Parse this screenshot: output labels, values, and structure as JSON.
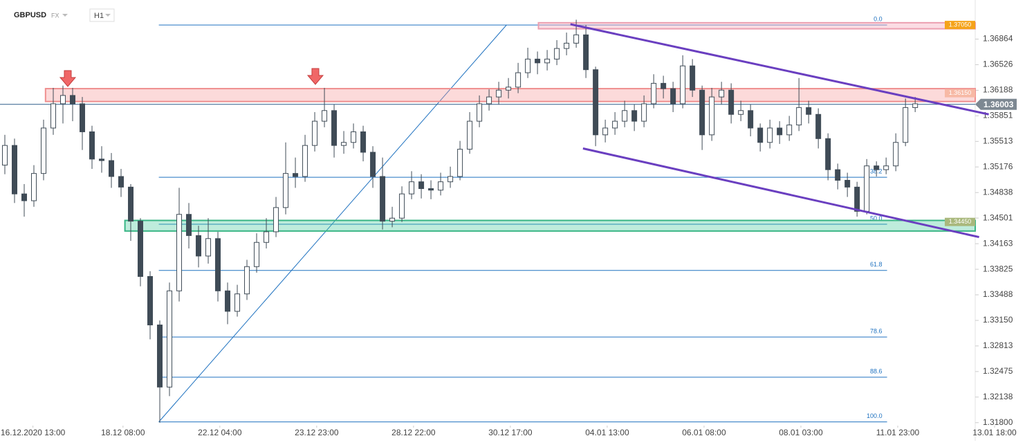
{
  "header": {
    "symbol": "GBPUSD",
    "market": "FX",
    "timeframe": "H1"
  },
  "chart_data": {
    "type": "candlestick",
    "xlim": [
      -0.5,
      100.2
    ],
    "ylim": [
      1.3156,
      1.3738
    ],
    "yticks": [
      1.36864,
      1.36526,
      1.36188,
      1.35851,
      1.35513,
      1.35176,
      1.34838,
      1.34501,
      1.34163,
      1.33825,
      1.33488,
      {
        "value": 1.3315,
        "label": "1.33150"
      },
      1.32813,
      1.32475,
      1.32138,
      {
        "value": 1.318,
        "label": "1.31800"
      }
    ],
    "xticks": [
      {
        "value": 2.9,
        "label": "16.12.2020 13:00"
      },
      {
        "value": 12.2,
        "label": "18.12 08:00"
      },
      {
        "value": 22.2,
        "label": "22.12 04:00"
      },
      {
        "value": 32.2,
        "label": "23.12 23:00"
      },
      {
        "value": 42.2,
        "label": "28.12 22:00"
      },
      {
        "value": 52.2,
        "label": "30.12 17:00"
      },
      {
        "value": 62.2,
        "label": "04.01 13:00"
      },
      {
        "value": 72.2,
        "label": "06.01 08:00"
      },
      {
        "value": 82.2,
        "label": "08.01 03:00"
      },
      {
        "value": 92.2,
        "label": "11.01 23:00"
      },
      {
        "value": 102.2,
        "label": "13.01 18:00"
      }
    ],
    "open": [
      1.352,
      1.3546,
      1.3482,
      1.3473,
      1.3509,
      1.3569,
      1.3601,
      1.3612,
      1.3601,
      1.3564,
      1.3528,
      1.3526,
      1.3505,
      1.3491,
      1.3446,
      1.3373,
      1.3309,
      1.3227,
      1.3354,
      1.3455,
      1.3427,
      1.34,
      1.3423,
      1.3354,
      1.3327,
      1.335,
      1.3386,
      1.3418,
      1.3432,
      1.3464,
      1.3509,
      1.3505,
      1.3546,
      1.3578,
      1.3592,
      1.3546,
      1.355,
      1.3564,
      1.3537,
      1.3505,
      1.3446,
      1.345,
      1.3482,
      1.3498,
      1.3489,
      1.3487,
      1.3498,
      1.3505,
      1.3541,
      1.3578,
      1.3601,
      1.361,
      1.3619,
      1.3623,
      1.3642,
      1.366,
      1.3655,
      1.366,
      1.3674,
      1.3681,
      1.3692,
      1.3646,
      1.356,
      1.3569,
      1.3578,
      1.3592,
      1.3578,
      1.3601,
      1.3628,
      1.3621,
      1.3601,
      1.3651,
      1.3619,
      1.356,
      1.361,
      1.3619,
      1.3587,
      1.3592,
      1.3569,
      1.355,
      1.3569,
      1.356,
      1.3573,
      1.3596,
      1.3587,
      1.3555,
      1.3514,
      1.35,
      1.3491,
      1.3459,
      1.3519,
      1.3514,
      1.3519,
      1.355,
      1.3596
    ],
    "high": [
      1.356,
      1.3555,
      1.3495,
      1.352,
      1.358,
      1.3622,
      1.3625,
      1.3622,
      1.361,
      1.3572,
      1.3545,
      1.3536,
      1.3515,
      1.3495,
      1.345,
      1.338,
      1.3315,
      1.3365,
      1.349,
      1.347,
      1.344,
      1.345,
      1.3432,
      1.3365,
      1.3362,
      1.3395,
      1.343,
      1.345,
      1.3478,
      1.355,
      1.353,
      1.356,
      1.359,
      1.3622,
      1.36,
      1.3565,
      1.3575,
      1.3572,
      1.3545,
      1.353,
      1.3465,
      1.3492,
      1.3512,
      1.3508,
      1.35,
      1.351,
      1.3518,
      1.3552,
      1.359,
      1.3612,
      1.362,
      1.363,
      1.3635,
      1.3655,
      1.3675,
      1.367,
      1.3672,
      1.3685,
      1.3695,
      1.3712,
      1.3705,
      1.365,
      1.358,
      1.359,
      1.3605,
      1.36,
      1.3612,
      1.364,
      1.3638,
      1.363,
      1.3665,
      1.366,
      1.3625,
      1.3622,
      1.363,
      1.3628,
      1.3605,
      1.36,
      1.3575,
      1.358,
      1.3578,
      1.3585,
      1.3635,
      1.3605,
      1.3595,
      1.3562,
      1.3522,
      1.351,
      1.3498,
      1.3528,
      1.3525,
      1.353,
      1.3562,
      1.3608,
      1.361
    ],
    "low": [
      1.3508,
      1.347,
      1.3452,
      1.3465,
      1.35,
      1.356,
      1.3575,
      1.3578,
      1.354,
      1.3515,
      1.351,
      1.349,
      1.3478,
      1.342,
      1.336,
      1.329,
      1.318,
      1.3215,
      1.334,
      1.341,
      1.3385,
      1.339,
      1.334,
      1.331,
      1.332,
      1.3342,
      1.3378,
      1.341,
      1.3425,
      1.3455,
      1.349,
      1.3498,
      1.3538,
      1.357,
      1.353,
      1.3535,
      1.3542,
      1.3525,
      1.349,
      1.3435,
      1.3438,
      1.3445,
      1.3475,
      1.3476,
      1.3475,
      1.348,
      1.349,
      1.35,
      1.3535,
      1.357,
      1.3592,
      1.36,
      1.3608,
      1.3615,
      1.3635,
      1.364,
      1.3645,
      1.3652,
      1.3665,
      1.3675,
      1.3635,
      1.3545,
      1.355,
      1.356,
      1.357,
      1.3565,
      1.357,
      1.3595,
      1.3608,
      1.359,
      1.3595,
      1.361,
      1.354,
      1.3552,
      1.36,
      1.3575,
      1.3578,
      1.3558,
      1.3538,
      1.3542,
      1.3548,
      1.3552,
      1.3565,
      1.3575,
      1.3542,
      1.35,
      1.3488,
      1.3478,
      1.3452,
      1.3455,
      1.3505,
      1.3508,
      1.3512,
      1.3545,
      1.359
    ],
    "close": [
      1.3546,
      1.3482,
      1.3473,
      1.3509,
      1.3569,
      1.3601,
      1.3612,
      1.3601,
      1.3564,
      1.3528,
      1.3526,
      1.3505,
      1.3491,
      1.3446,
      1.3373,
      1.3309,
      1.3227,
      1.3354,
      1.3455,
      1.3427,
      1.34,
      1.3423,
      1.3354,
      1.3327,
      1.335,
      1.3386,
      1.3418,
      1.3432,
      1.3464,
      1.3509,
      1.3505,
      1.3546,
      1.3578,
      1.3592,
      1.3546,
      1.355,
      1.3564,
      1.3537,
      1.3505,
      1.3446,
      1.345,
      1.3482,
      1.3498,
      1.3489,
      1.3487,
      1.3498,
      1.3505,
      1.3541,
      1.3578,
      1.3601,
      1.361,
      1.3619,
      1.3623,
      1.3642,
      1.366,
      1.3655,
      1.366,
      1.3674,
      1.3681,
      1.3692,
      1.3646,
      1.356,
      1.3569,
      1.3578,
      1.3592,
      1.3578,
      1.3601,
      1.3628,
      1.3621,
      1.3601,
      1.3651,
      1.3619,
      1.356,
      1.361,
      1.3619,
      1.3587,
      1.3592,
      1.3569,
      1.355,
      1.3569,
      1.356,
      1.3573,
      1.3596,
      1.3587,
      1.3555,
      1.3514,
      1.35,
      1.3491,
      1.3459,
      1.3519,
      1.3514,
      1.3519,
      1.355,
      1.3596,
      1.3601
    ],
    "up_color": "#ffffff",
    "down_color": "#3f4b56",
    "line_color": "#3f4b56",
    "current_price": {
      "value": 1.36003,
      "color": "#7d8892"
    },
    "zones": [
      {
        "value": 1.3705,
        "label": "1.37050",
        "low": 1.37,
        "high": 1.3708,
        "x_start": 55.1,
        "fill": "rgba(247,180,195,0.45)",
        "border": "#ec9fb0",
        "label_bg": "#f5a31a"
      },
      {
        "value": 1.3615,
        "label": "1.36150",
        "low": 1.3604,
        "high": 1.3621,
        "x_start": 4.2,
        "fill": "rgba(246,150,150,0.35)",
        "border": "#ef8f8f",
        "label_bg": "#f7b9a5"
      },
      {
        "value": 1.3445,
        "label": "1.34450",
        "low": 1.3433,
        "high": 1.3447,
        "x_start": 12.4,
        "fill": "rgba(70,200,155,0.35)",
        "border": "#38b585",
        "label_bg": "#a9b87c"
      }
    ],
    "fibonacci": {
      "color": "#1f72c0",
      "x_start": 15.9,
      "x_end": 91.1,
      "levels": [
        {
          "text": "0.0",
          "price": 1.3705
        },
        {
          "text": "38.2",
          "price": 1.3504
        },
        {
          "text": "50.0",
          "price": 1.3442
        },
        {
          "text": "61.8",
          "price": 1.3381
        },
        {
          "text": "78.6",
          "price": 1.3293
        },
        {
          "text": "88.6",
          "price": 1.324
        },
        {
          "text": "100.0",
          "price": 1.3181
        }
      ],
      "swing": {
        "x": [
          15.9,
          51.8
        ],
        "y": [
          1.3181,
          1.3705
        ]
      }
    },
    "channel": {
      "color": "#6a3fc0",
      "lines": [
        {
          "x": [
            58.4,
            101.6
          ],
          "y": [
            1.3706,
            1.3587
          ]
        },
        {
          "x": [
            59.7,
            100.6
          ],
          "y": [
            1.3542,
            1.3425
          ]
        }
      ]
    }
  }
}
